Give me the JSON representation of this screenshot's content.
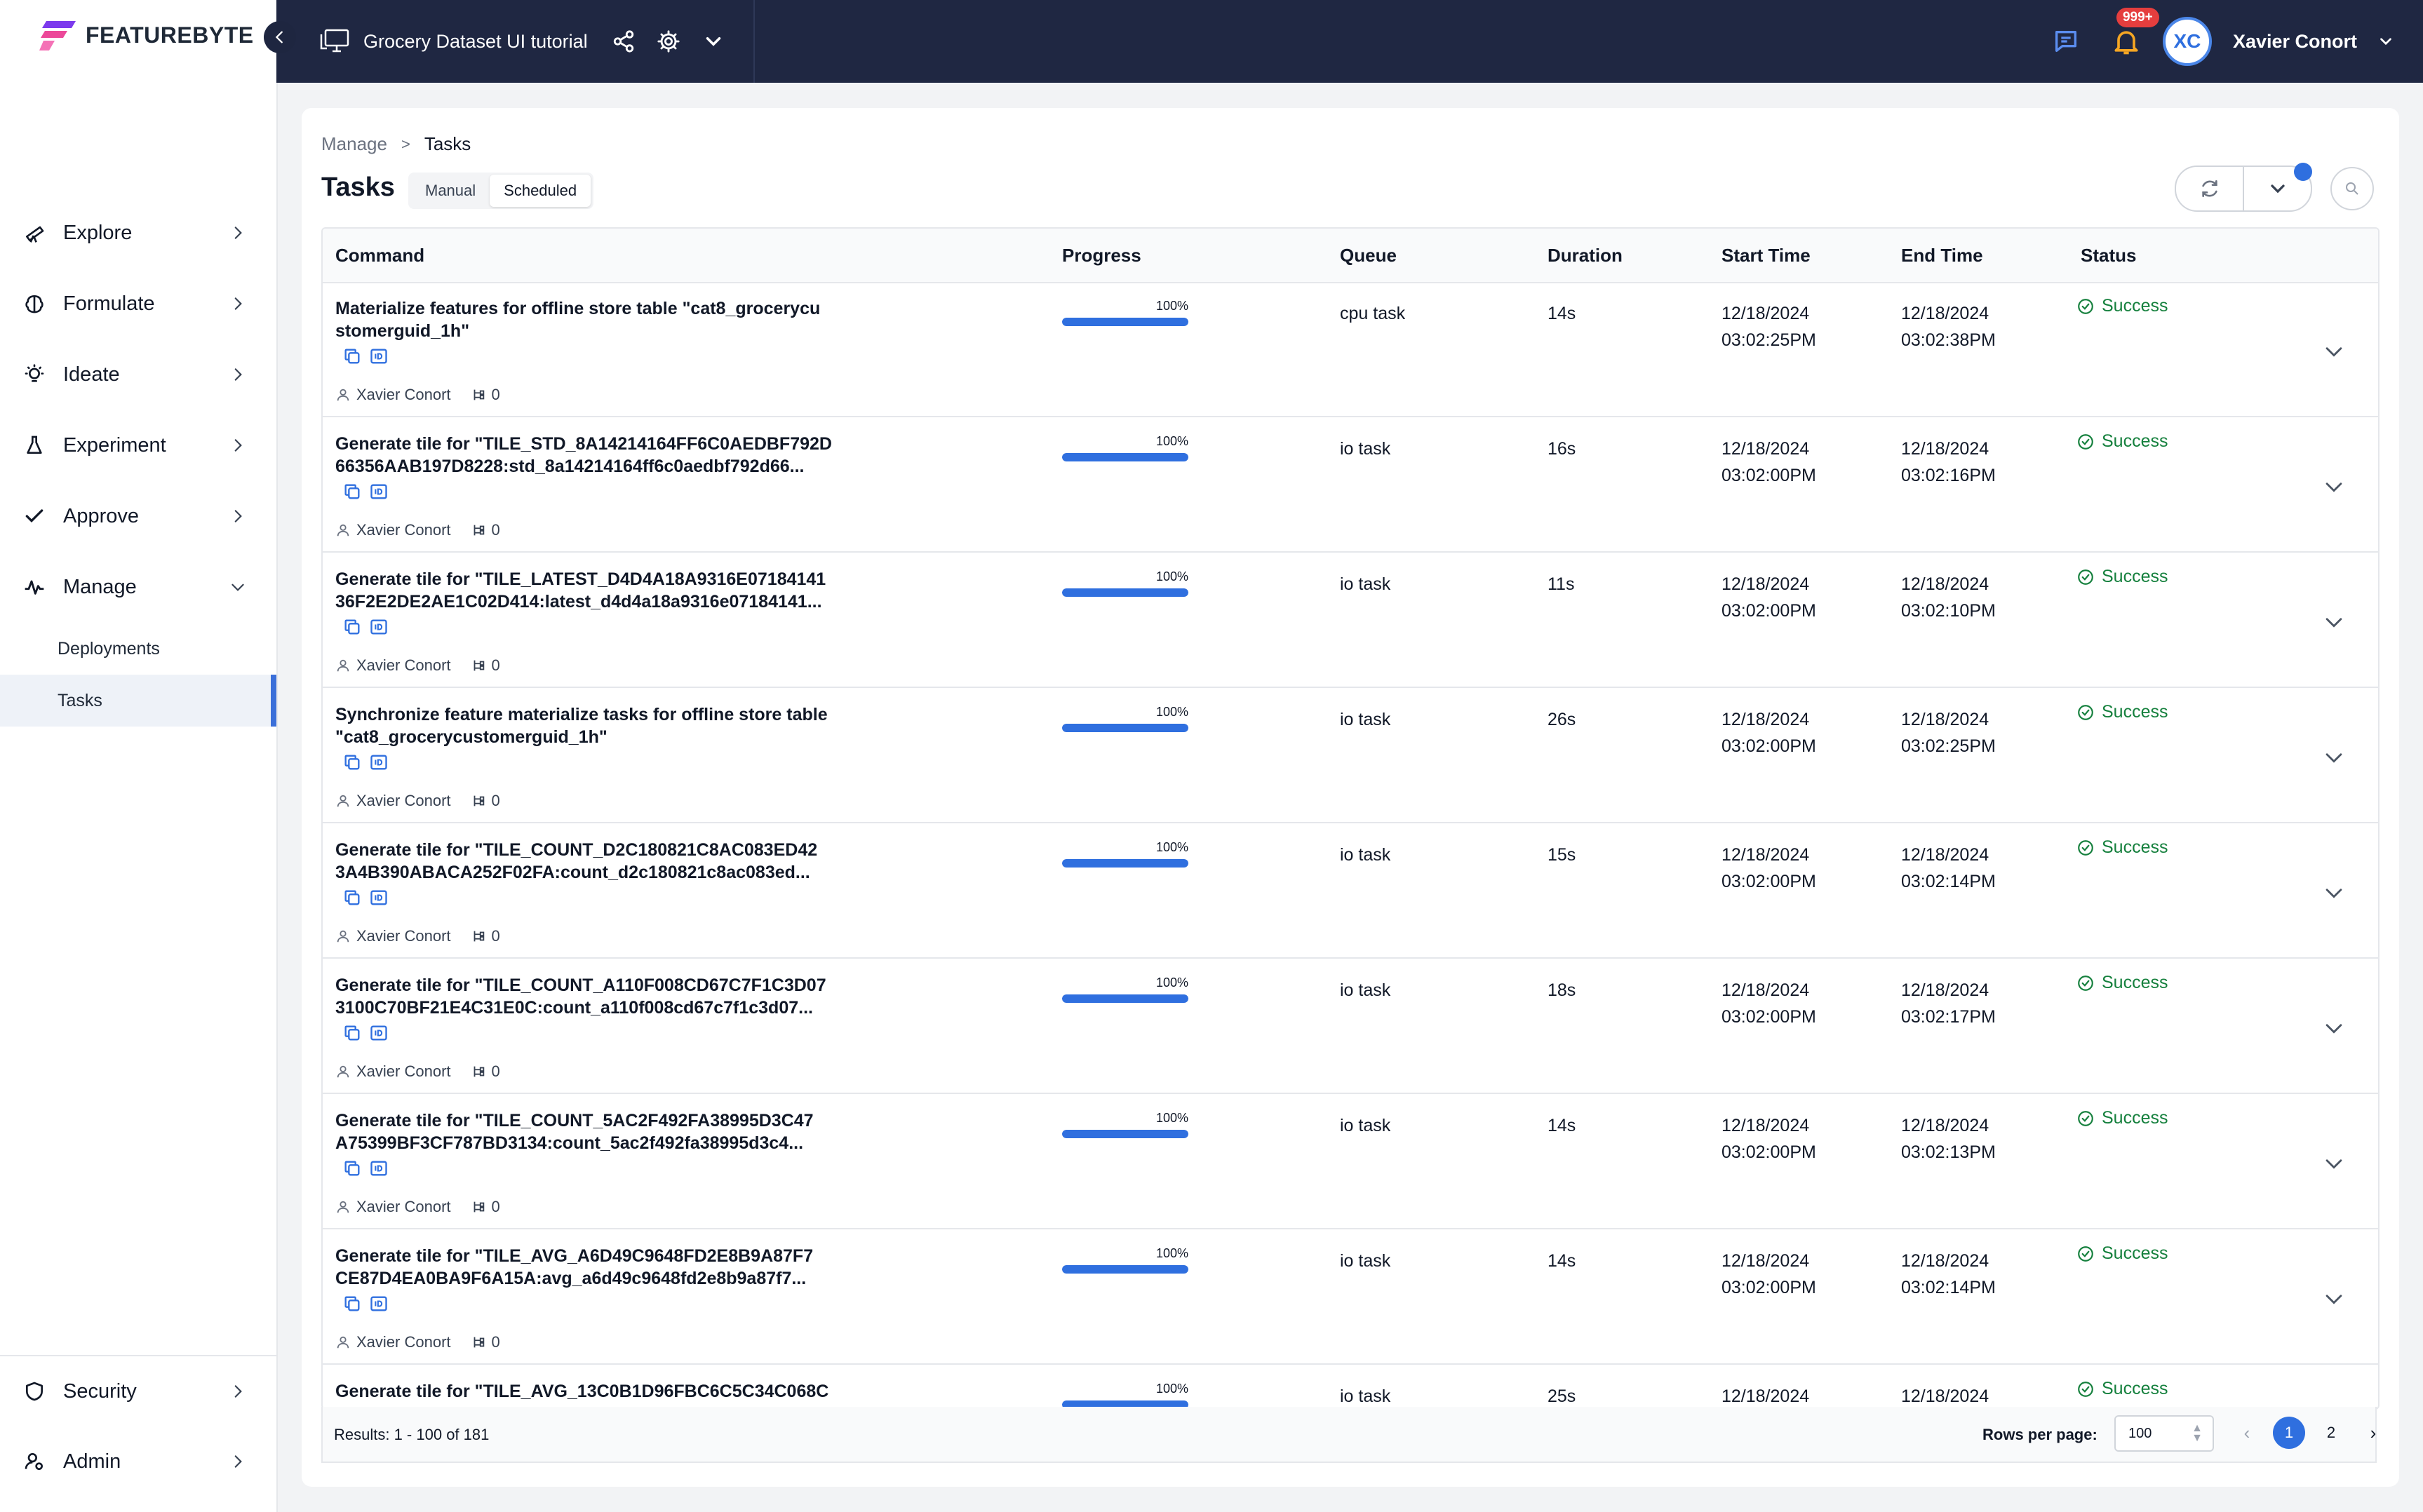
{
  "brand": {
    "name": "FEATUREBYTE"
  },
  "sidebar": {
    "nav": [
      {
        "id": "explore",
        "label": "Explore",
        "icon": "telescope-icon"
      },
      {
        "id": "formulate",
        "label": "Formulate",
        "icon": "brain-icon"
      },
      {
        "id": "ideate",
        "label": "Ideate",
        "icon": "lightbulb-icon"
      },
      {
        "id": "experiment",
        "label": "Experiment",
        "icon": "flask-icon"
      },
      {
        "id": "approve",
        "label": "Approve",
        "icon": "check-icon"
      },
      {
        "id": "manage",
        "label": "Manage",
        "icon": "pulse-icon"
      }
    ],
    "manage_sub": [
      {
        "label": "Deployments"
      },
      {
        "label": "Tasks"
      }
    ],
    "bottom": [
      {
        "id": "security",
        "label": "Security",
        "icon": "shield-icon"
      },
      {
        "id": "admin",
        "label": "Admin",
        "icon": "user-gear-icon"
      }
    ]
  },
  "topbar": {
    "project_name": "Grocery Dataset UI tutorial",
    "notification_badge": "999+",
    "user_initials": "XC",
    "user_name": "Xavier Conort"
  },
  "page": {
    "breadcrumb": {
      "parent": "Manage",
      "separator": ">",
      "current": "Tasks"
    },
    "title": "Tasks",
    "tabs": [
      {
        "label": "Manual",
        "active": false
      },
      {
        "label": "Scheduled",
        "active": true
      }
    ]
  },
  "table": {
    "columns": {
      "command": "Command",
      "progress": "Progress",
      "queue": "Queue",
      "duration": "Duration",
      "start": "Start Time",
      "end": "End Time",
      "status": "Status"
    },
    "rows": [
      {
        "cmd1": "Materialize features for offline store table \"cat8_grocerycu",
        "cmd2": "stomerguid_1h\"",
        "user": "Xavier Conort",
        "children": "0",
        "progress_pct": "100%",
        "progress": 1.0,
        "queue": "cpu task",
        "duration": "14s",
        "start_date": "12/18/2024",
        "start_time": "03:02:25PM",
        "end_date": "12/18/2024",
        "end_time": "03:02:38PM",
        "status": "Success"
      },
      {
        "cmd1": "Generate tile for \"TILE_STD_8A14214164FF6C0AEDBF792D",
        "cmd2": "66356AAB197D8228:std_8a14214164ff6c0aedbf792d66...",
        "user": "Xavier Conort",
        "children": "0",
        "progress_pct": "100%",
        "progress": 1.0,
        "queue": "io task",
        "duration": "16s",
        "start_date": "12/18/2024",
        "start_time": "03:02:00PM",
        "end_date": "12/18/2024",
        "end_time": "03:02:16PM",
        "status": "Success"
      },
      {
        "cmd1": "Generate tile for \"TILE_LATEST_D4D4A18A9316E07184141",
        "cmd2": "36F2E2DE2AE1C02D414:latest_d4d4a18a9316e07184141...",
        "user": "Xavier Conort",
        "children": "0",
        "progress_pct": "100%",
        "progress": 1.0,
        "queue": "io task",
        "duration": "11s",
        "start_date": "12/18/2024",
        "start_time": "03:02:00PM",
        "end_date": "12/18/2024",
        "end_time": "03:02:10PM",
        "status": "Success"
      },
      {
        "cmd1": "Synchronize feature materialize tasks for offline store table",
        "cmd2": "\"cat8_grocerycustomerguid_1h\"",
        "user": "Xavier Conort",
        "children": "0",
        "progress_pct": "100%",
        "progress": 1.0,
        "queue": "io task",
        "duration": "26s",
        "start_date": "12/18/2024",
        "start_time": "03:02:00PM",
        "end_date": "12/18/2024",
        "end_time": "03:02:25PM",
        "status": "Success"
      },
      {
        "cmd1": "Generate tile for \"TILE_COUNT_D2C180821C8AC083ED42",
        "cmd2": "3A4B390ABACA252F02FA:count_d2c180821c8ac083ed...",
        "user": "Xavier Conort",
        "children": "0",
        "progress_pct": "100%",
        "progress": 1.0,
        "queue": "io task",
        "duration": "15s",
        "start_date": "12/18/2024",
        "start_time": "03:02:00PM",
        "end_date": "12/18/2024",
        "end_time": "03:02:14PM",
        "status": "Success"
      },
      {
        "cmd1": "Generate tile for \"TILE_COUNT_A110F008CD67C7F1C3D07",
        "cmd2": "3100C70BF21E4C31E0C:count_a110f008cd67c7f1c3d07...",
        "user": "Xavier Conort",
        "children": "0",
        "progress_pct": "100%",
        "progress": 1.0,
        "queue": "io task",
        "duration": "18s",
        "start_date": "12/18/2024",
        "start_time": "03:02:00PM",
        "end_date": "12/18/2024",
        "end_time": "03:02:17PM",
        "status": "Success"
      },
      {
        "cmd1": "Generate tile for \"TILE_COUNT_5AC2F492FA38995D3C47",
        "cmd2": "A75399BF3CF787BD3134:count_5ac2f492fa38995d3c4...",
        "user": "Xavier Conort",
        "children": "0",
        "progress_pct": "100%",
        "progress": 1.0,
        "queue": "io task",
        "duration": "14s",
        "start_date": "12/18/2024",
        "start_time": "03:02:00PM",
        "end_date": "12/18/2024",
        "end_time": "03:02:13PM",
        "status": "Success"
      },
      {
        "cmd1": "Generate tile for \"TILE_AVG_A6D49C9648FD2E8B9A87F7",
        "cmd2": "CE87D4EA0BA9F6A15A:avg_a6d49c9648fd2e8b9a87f7...",
        "user": "Xavier Conort",
        "children": "0",
        "progress_pct": "100%",
        "progress": 1.0,
        "queue": "io task",
        "duration": "14s",
        "start_date": "12/18/2024",
        "start_time": "03:02:00PM",
        "end_date": "12/18/2024",
        "end_time": "03:02:14PM",
        "status": "Success"
      },
      {
        "cmd1": "Generate tile for \"TILE_AVG_13C0B1D96FBC6C5C34C068C",
        "cmd2": "",
        "user": "Xavier Conort",
        "children": "0",
        "progress_pct": "100%",
        "progress": 1.0,
        "queue": "io task",
        "duration": "25s",
        "start_date": "12/18/2024",
        "start_time": "",
        "end_date": "12/18/2024",
        "end_time": "",
        "status": "Success"
      }
    ]
  },
  "footer": {
    "results": "Results: 1 - 100 of 181",
    "rows_per_page_label": "Rows per page:",
    "rows_per_page": "100",
    "pages": [
      "1",
      "2"
    ],
    "current_page": "1"
  },
  "colors": {
    "accent": "#2f6fdf",
    "topbar": "#1f2742",
    "success": "#15803d",
    "badge": "#e53e3e"
  }
}
